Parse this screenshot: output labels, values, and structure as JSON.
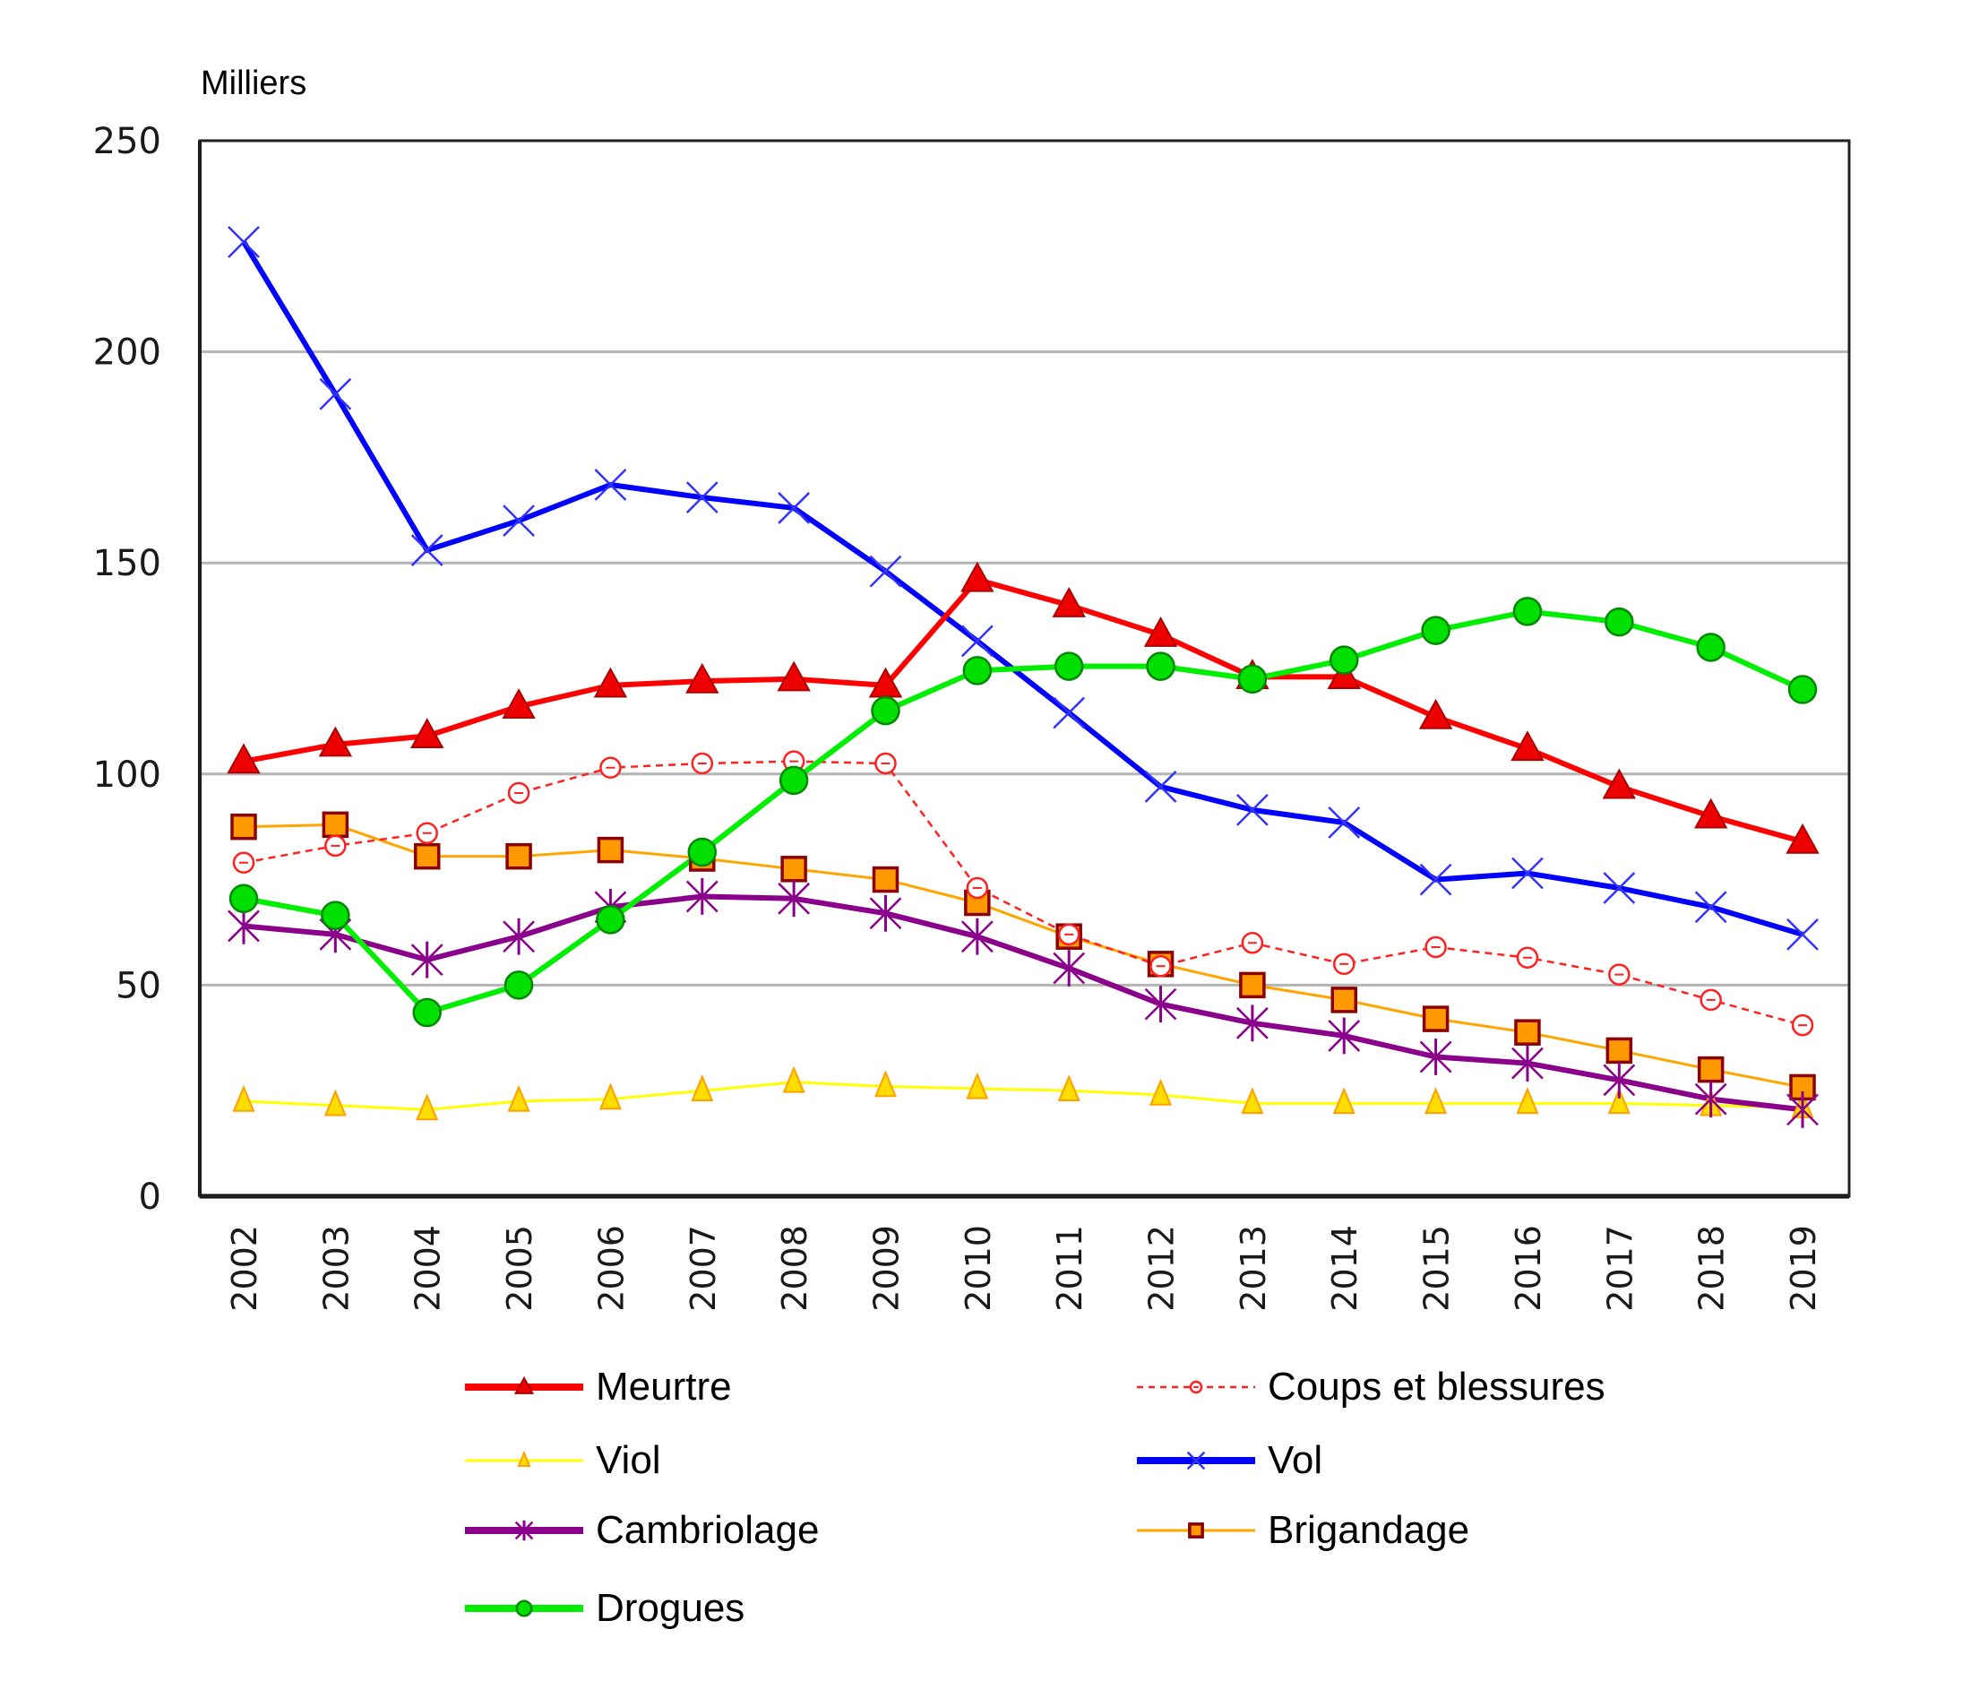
{
  "chart_data": {
    "type": "line",
    "title": "",
    "ylabel": "Milliers",
    "xlabel": "",
    "ylim": [
      0,
      250
    ],
    "yticks": [
      0,
      50,
      100,
      150,
      200,
      250
    ],
    "grid": true,
    "legend_position": "bottom",
    "categories": [
      "2002",
      "2003",
      "2004",
      "2005",
      "2006",
      "2007",
      "2008",
      "2009",
      "2010",
      "2011",
      "2012",
      "2013",
      "2014",
      "2015",
      "2016",
      "2017",
      "2018",
      "2019"
    ],
    "series": [
      {
        "name": "Meurtre",
        "color": "#ff0000",
        "marker": "triangle",
        "marker_fill": "#ee0000",
        "marker_stroke": "#aa0000",
        "line_style": "solid",
        "line_width": "thick",
        "values": [
          103,
          107,
          109,
          116,
          121,
          122,
          122.5,
          121,
          146,
          140,
          133,
          123,
          123,
          113.5,
          106,
          97,
          90,
          84
        ]
      },
      {
        "name": "Coups et blessures",
        "color": "#ff2020",
        "marker": "open-circle",
        "marker_fill": "#ffffff",
        "marker_stroke": "#ff2020",
        "line_style": "dashed",
        "line_width": "thin",
        "values": [
          79,
          83,
          86,
          95.5,
          101.5,
          102.5,
          103,
          102.5,
          73,
          62,
          54.5,
          60,
          55,
          59,
          56.5,
          52.5,
          46.5,
          40.5
        ]
      },
      {
        "name": "Viol",
        "color": "#ffff00",
        "marker": "triangle",
        "marker_fill": "#ffdd00",
        "marker_stroke": "#ffa000",
        "line_style": "solid",
        "line_width": "thin",
        "values": [
          22.5,
          21.5,
          20.5,
          22.5,
          23,
          25,
          27,
          26,
          25.5,
          25,
          24,
          22,
          22,
          22,
          22,
          22,
          21.5,
          21
        ]
      },
      {
        "name": "Vol",
        "color": "#0000ff",
        "marker": "x",
        "marker_fill": "none",
        "marker_stroke": "#3333ff",
        "line_style": "solid",
        "line_width": "thick",
        "values": [
          226,
          190,
          153,
          160,
          168.5,
          165.5,
          163,
          148,
          131.5,
          114.5,
          97,
          91.5,
          88.5,
          75,
          76.5,
          73,
          68.5,
          62
        ]
      },
      {
        "name": "Cambriolage",
        "color": "#8b008b",
        "marker": "asterisk",
        "marker_fill": "none",
        "marker_stroke": "#8b008b",
        "line_style": "solid",
        "line_width": "thick",
        "values": [
          64,
          62,
          56,
          61.5,
          68.5,
          71,
          70.5,
          67,
          61.5,
          54,
          45.5,
          41,
          38,
          33,
          31.5,
          27.5,
          23,
          20.5
        ]
      },
      {
        "name": "Brigandage",
        "color": "#ffa500",
        "marker": "square",
        "marker_fill": "#ff9900",
        "marker_stroke": "#8b0000",
        "line_style": "solid",
        "line_width": "thin",
        "values": [
          87.5,
          88,
          80.5,
          80.5,
          82,
          80,
          77.5,
          75,
          69.5,
          61.5,
          55,
          50,
          46.5,
          42,
          38.8,
          34.5,
          30,
          25.8
        ]
      },
      {
        "name": "Drogues",
        "color": "#00ee00",
        "marker": "circle",
        "marker_fill": "#00e000",
        "marker_stroke": "#008800",
        "line_style": "solid",
        "line_width": "thick",
        "values": [
          70.5,
          66.5,
          43.5,
          50,
          65.5,
          81.5,
          98.5,
          115,
          124.5,
          125.5,
          125.5,
          122.5,
          127,
          134,
          138.5,
          136,
          130,
          120
        ]
      }
    ],
    "legend": [
      {
        "series": "Meurtre",
        "label": "Meurtre",
        "column": 0,
        "row": 0
      },
      {
        "series": "Viol",
        "label": "Viol",
        "column": 0,
        "row": 1
      },
      {
        "series": "Cambriolage",
        "label": "Cambriolage",
        "column": 0,
        "row": 2
      },
      {
        "series": "Drogues",
        "label": "Drogues",
        "column": 0,
        "row": 3
      },
      {
        "series": "Coups et blessures",
        "label": "Coups et blessures",
        "column": 1,
        "row": 0
      },
      {
        "series": "Vol",
        "label": "Vol",
        "column": 1,
        "row": 1
      },
      {
        "series": "Brigandage",
        "label": "Brigandage",
        "column": 1,
        "row": 2
      }
    ]
  }
}
